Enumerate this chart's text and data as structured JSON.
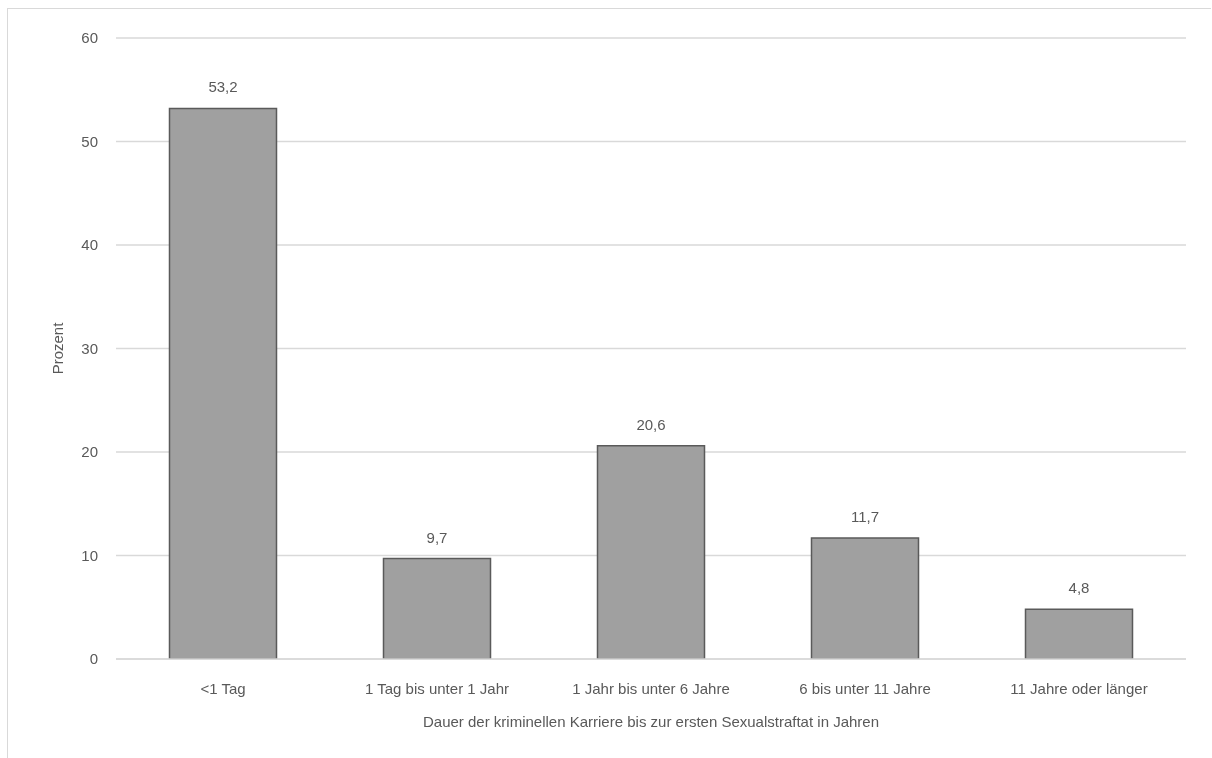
{
  "chart_data": {
    "type": "bar",
    "xlabel": "Dauer der kriminellen Karriere bis zur ersten Sexualstraftat in Jahren",
    "ylabel": "Prozent",
    "categories": [
      "<1 Tag",
      "1 Tag bis unter 1 Jahr",
      "1 Jahr bis unter 6 Jahre",
      "6 bis unter 11 Jahre",
      "11 Jahre oder länger"
    ],
    "values": [
      53.2,
      9.7,
      20.6,
      11.7,
      4.8
    ],
    "value_labels": [
      "53,2",
      "9,7",
      "20,6",
      "11,7",
      "4,8"
    ],
    "color": "#a0a0a0",
    "ylim": [
      0,
      60
    ],
    "yticks": [
      0,
      10,
      20,
      30,
      40,
      50,
      60
    ],
    "grid": "y",
    "legend": false
  }
}
